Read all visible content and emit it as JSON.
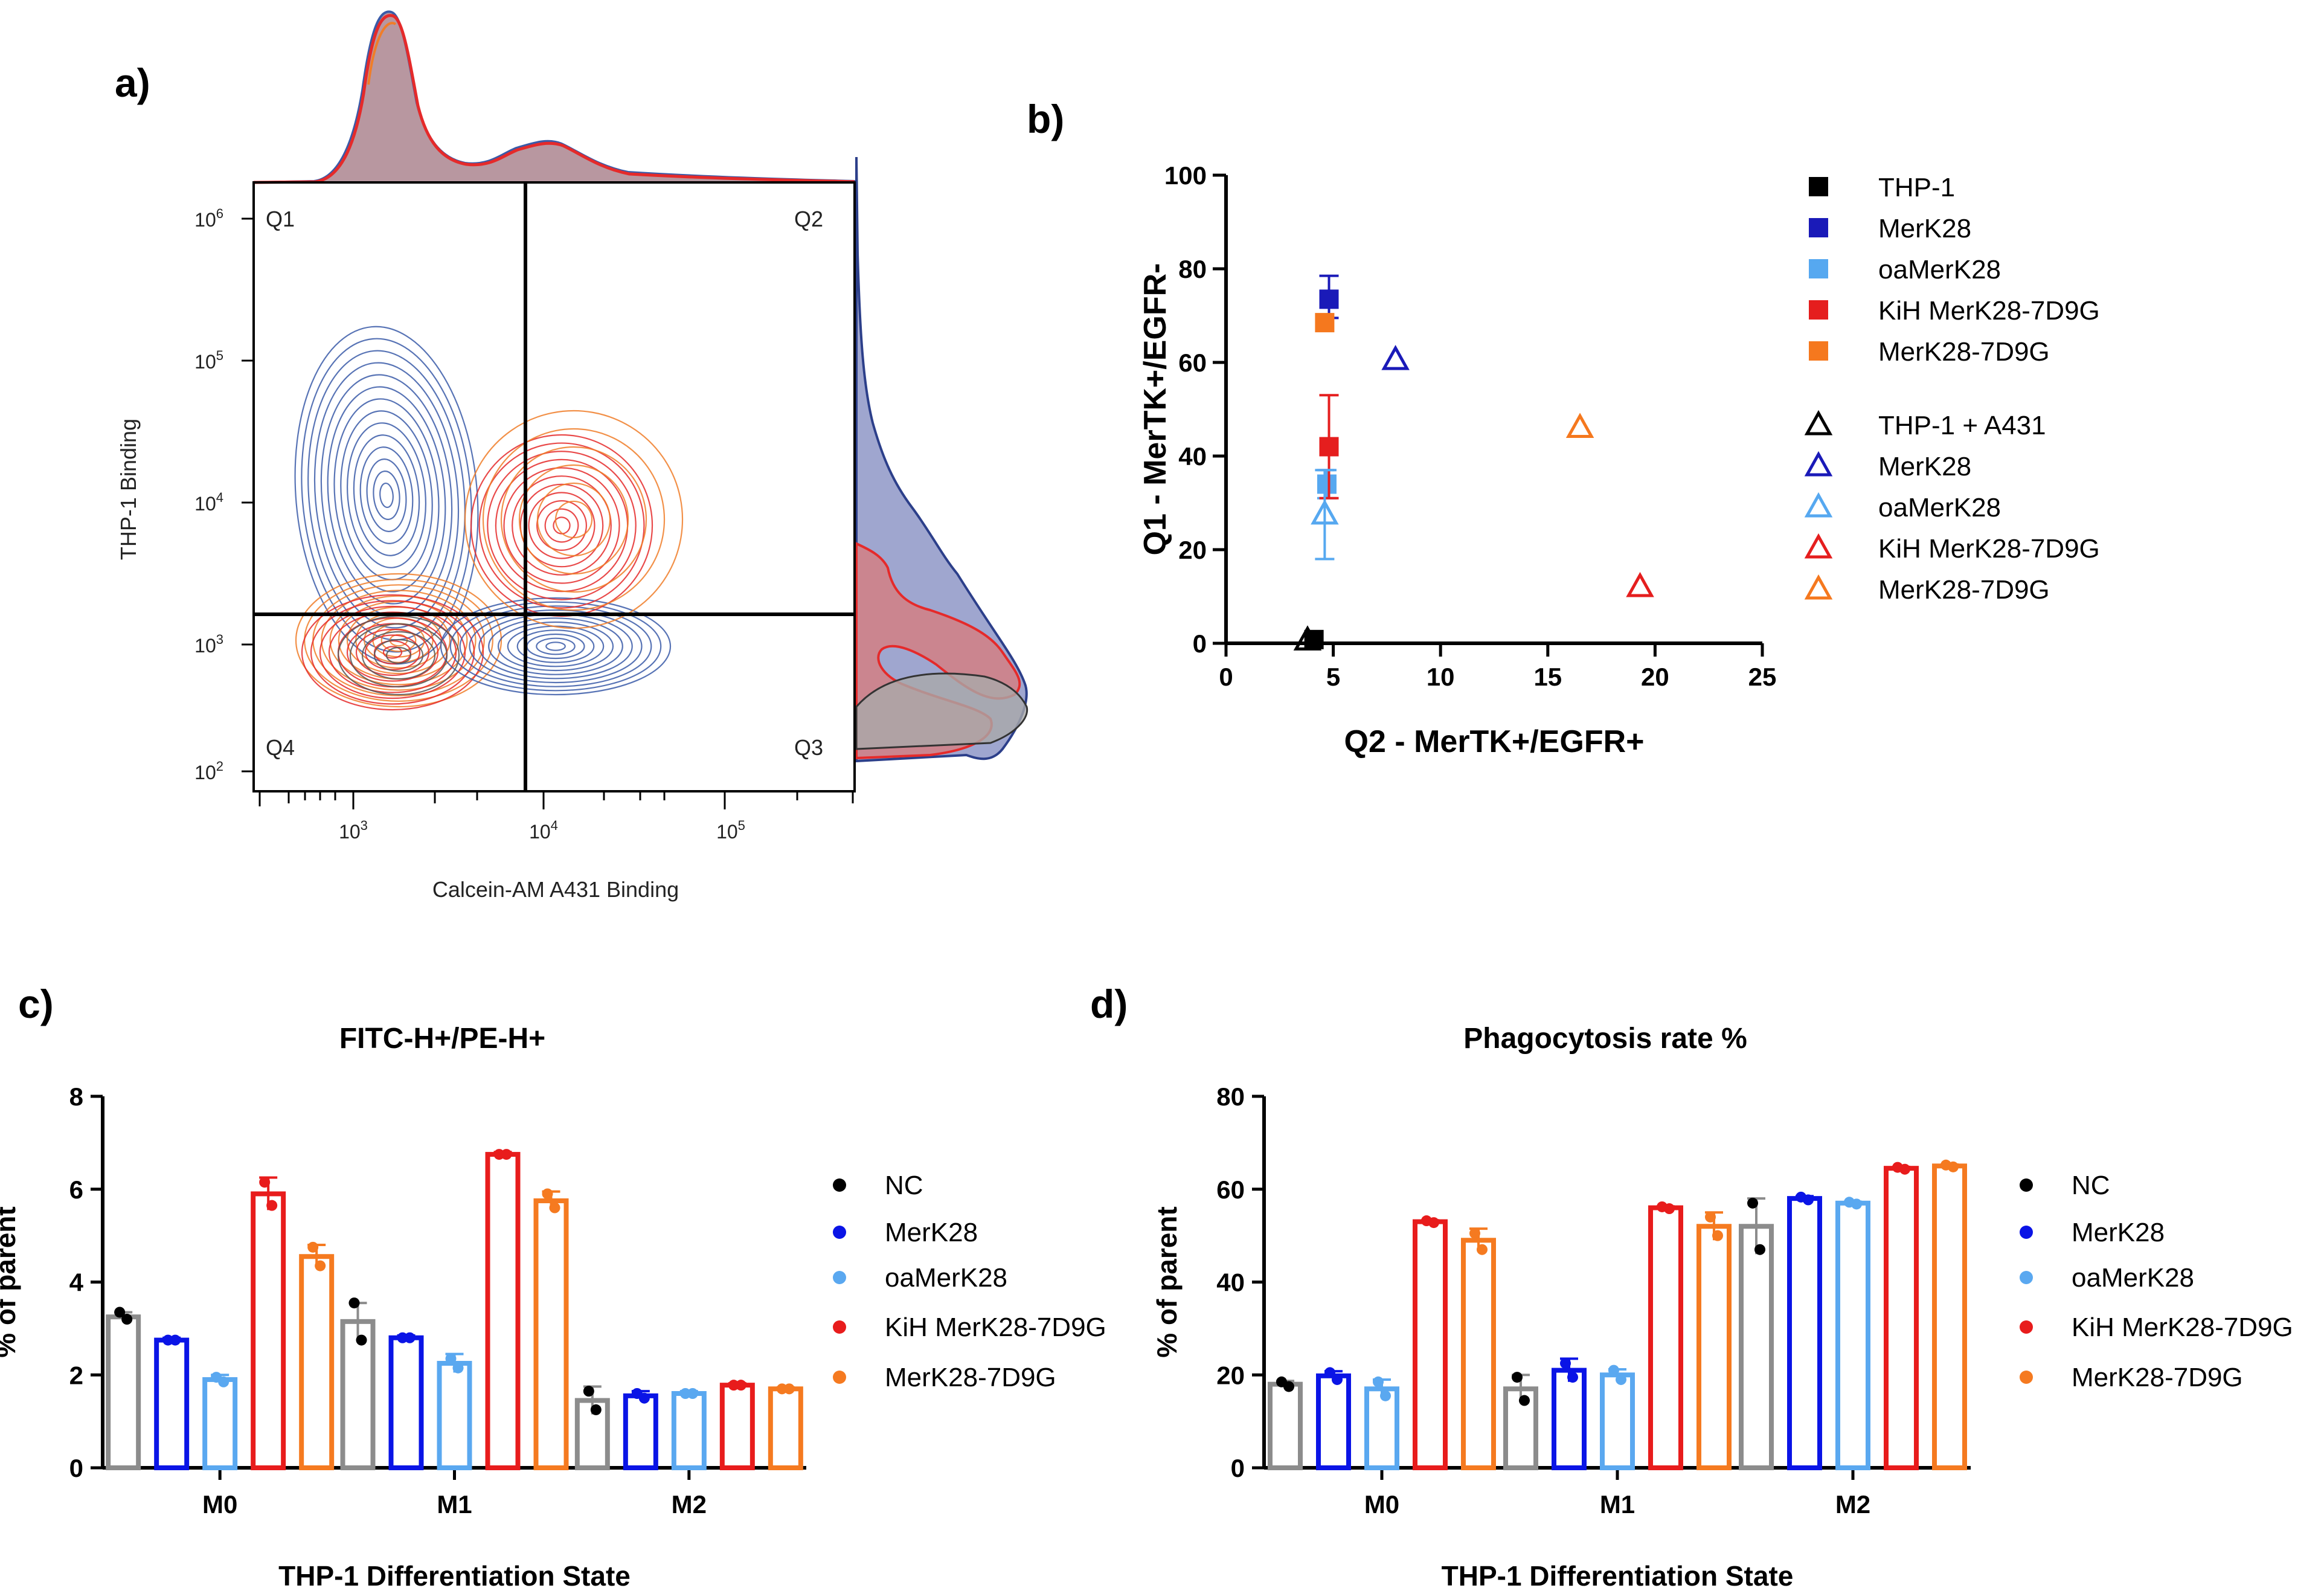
{
  "panels": {
    "a": {
      "label": "a)",
      "quadrants": [
        "Q1",
        "Q2",
        "Q3",
        "Q4"
      ],
      "x_axis_label": "Calcein-AM A431 Binding",
      "y_axis_label": "THP-1 Binding",
      "x_ticks": [
        "10",
        "10",
        "10"
      ],
      "x_tick_exponents": [
        "3",
        "4",
        "5"
      ],
      "y_ticks": [
        "10",
        "10",
        "10",
        "10",
        "10"
      ],
      "y_tick_exponents": [
        "6",
        "5",
        "4",
        "3",
        "2"
      ],
      "colors": {
        "blue": "#3a5ba8",
        "orange": "#f07d28",
        "red": "#e52a2a",
        "gray": "#555555"
      }
    },
    "b": {
      "label": "b)"
    },
    "c": {
      "label": "c)"
    },
    "d": {
      "label": "d)"
    }
  },
  "chart_data": [
    {
      "panel": "b",
      "type": "scatter",
      "title": "",
      "xlabel": "Q2 - MerTK+/EGFR+",
      "ylabel": "Q1 - MerTK+/EGFR-",
      "xlim": [
        0,
        25
      ],
      "ylim": [
        0,
        100
      ],
      "x_ticks": [
        "0",
        "5",
        "10",
        "15",
        "20",
        "25"
      ],
      "y_ticks": [
        "0",
        "20",
        "40",
        "60",
        "80",
        "100"
      ],
      "series": [
        {
          "name": "THP-1",
          "marker": "square",
          "color": "#000000",
          "x": 4.1,
          "y": 0.8,
          "err_low": 0,
          "err_high": 0
        },
        {
          "name": "MerK28",
          "marker": "square",
          "color": "#1a1ab8",
          "x": 4.8,
          "y": 73.5,
          "err_low": 4,
          "err_high": 5
        },
        {
          "name": "oaMerK28",
          "marker": "square",
          "color": "#56a8f0",
          "x": 4.7,
          "y": 34,
          "err_low": 3,
          "err_high": 3
        },
        {
          "name": "KiH MerK28-7D9G",
          "marker": "square",
          "color": "#e51e1e",
          "x": 4.8,
          "y": 42,
          "err_low": 11,
          "err_high": 11
        },
        {
          "name": "MerK28-7D9G",
          "marker": "square",
          "color": "#f5781e",
          "x": 4.6,
          "y": 68.5,
          "err_low": 0,
          "err_high": 0
        },
        {
          "name": "THP-1 + A431",
          "marker": "triangle",
          "color": "#000000",
          "x": 3.8,
          "y": 0.6,
          "err_low": 0,
          "err_high": 0
        },
        {
          "name": "MerK28",
          "marker": "triangle",
          "color": "#1a1ab8",
          "x": 7.9,
          "y": 60.5,
          "err_low": 0,
          "err_high": 0
        },
        {
          "name": "oaMerK28",
          "marker": "triangle",
          "color": "#56a8f0",
          "x": 4.6,
          "y": 27.5,
          "err_low": 9.5,
          "err_high": 9.5
        },
        {
          "name": "KiH MerK28-7D9G",
          "marker": "triangle",
          "color": "#e51e1e",
          "x": 19.3,
          "y": 12,
          "err_low": 0,
          "err_high": 0
        },
        {
          "name": "MerK28-7D9G",
          "marker": "triangle",
          "color": "#f5781e",
          "x": 16.5,
          "y": 46,
          "err_low": 0,
          "err_high": 0
        }
      ]
    },
    {
      "panel": "c",
      "type": "bar",
      "title": "FITC-H+/PE-H+",
      "xlabel": "THP-1 Differentiation State",
      "ylabel": "% of parent",
      "ylim": [
        0,
        8
      ],
      "y_ticks": [
        "0",
        "2",
        "4",
        "6",
        "8"
      ],
      "categories": [
        "M0",
        "M1",
        "M2"
      ],
      "series": [
        {
          "name": "NC",
          "color": "#8c8c8c",
          "dot_color": "#000000",
          "values": [
            3.25,
            3.15,
            1.45
          ],
          "errors": [
            0.1,
            0.4,
            0.3
          ],
          "points": [
            [
              3.35,
              3.2
            ],
            [
              3.55,
              2.75
            ],
            [
              1.65,
              1.25
            ]
          ]
        },
        {
          "name": "MerK28",
          "color": "#0a14e6",
          "dot_color": "#0a14e6",
          "values": [
            2.75,
            2.8,
            1.55
          ],
          "errors": [
            0.05,
            0.05,
            0.1
          ],
          "points": [
            [
              2.75,
              2.75
            ],
            [
              2.8,
              2.8
            ],
            [
              1.6,
              1.5
            ]
          ]
        },
        {
          "name": "oaMerK28",
          "color": "#5aa8f0",
          "dot_color": "#5aa8f0",
          "values": [
            1.9,
            2.25,
            1.6
          ],
          "errors": [
            0.1,
            0.2,
            0.05
          ],
          "points": [
            [
              1.95,
              1.85
            ],
            [
              2.35,
              2.15
            ],
            [
              1.6,
              1.6
            ]
          ]
        },
        {
          "name": "KiH MerK28-7D9G",
          "color": "#e81c1c",
          "dot_color": "#e81c1c",
          "values": [
            5.9,
            6.75,
            1.78
          ],
          "errors": [
            0.35,
            0.05,
            0.04
          ],
          "points": [
            [
              6.15,
              5.65
            ],
            [
              6.75,
              6.75
            ],
            [
              1.78,
              1.78
            ]
          ]
        },
        {
          "name": "MerK28-7D9G",
          "color": "#f57a20",
          "dot_color": "#f57a20",
          "values": [
            4.55,
            5.75,
            1.7
          ],
          "errors": [
            0.25,
            0.2,
            0.03
          ],
          "points": [
            [
              4.75,
              4.35
            ],
            [
              5.9,
              5.6
            ],
            [
              1.7,
              1.7
            ]
          ]
        }
      ]
    },
    {
      "panel": "d",
      "type": "bar",
      "title": "Phagocytosis rate %",
      "xlabel": "THP-1 Differentiation State",
      "ylabel": "% of parent",
      "ylim": [
        0,
        80
      ],
      "y_ticks": [
        "0",
        "20",
        "40",
        "60",
        "80"
      ],
      "categories": [
        "M0",
        "M1",
        "M2"
      ],
      "series": [
        {
          "name": "NC",
          "color": "#8c8c8c",
          "dot_color": "#000000",
          "values": [
            18,
            17,
            52
          ],
          "errors": [
            0.7,
            3,
            6
          ],
          "points": [
            [
              18.5,
              17.5
            ],
            [
              19.5,
              14.5
            ],
            [
              57,
              47
            ]
          ]
        },
        {
          "name": "MerK28",
          "color": "#0a14e6",
          "dot_color": "#0a14e6",
          "values": [
            19.8,
            21,
            58
          ],
          "errors": [
            1,
            2.5,
            0.5
          ],
          "points": [
            [
              20.5,
              19
            ],
            [
              22.5,
              19.5
            ],
            [
              58.3,
              57.7
            ]
          ]
        },
        {
          "name": "oaMerK28",
          "color": "#5aa8f0",
          "dot_color": "#5aa8f0",
          "values": [
            17,
            20,
            57
          ],
          "errors": [
            2,
            1.2,
            0.3
          ],
          "points": [
            [
              18.5,
              15.5
            ],
            [
              21,
              19
            ],
            [
              57.2,
              56.8
            ]
          ]
        },
        {
          "name": "KiH MerK28-7D9G",
          "color": "#e81c1c",
          "dot_color": "#e81c1c",
          "values": [
            53,
            56,
            64.5
          ],
          "errors": [
            0.3,
            0.3,
            0.3
          ],
          "points": [
            [
              53.2,
              52.8
            ],
            [
              56.2,
              55.8
            ],
            [
              64.7,
              64.3
            ]
          ]
        },
        {
          "name": "MerK28-7D9G",
          "color": "#f57a20",
          "dot_color": "#f57a20",
          "values": [
            49,
            52,
            65
          ],
          "errors": [
            2.5,
            3,
            0.3
          ],
          "points": [
            [
              50.5,
              47
            ],
            [
              54,
              50
            ],
            [
              65.2,
              64.8
            ]
          ]
        }
      ]
    }
  ]
}
